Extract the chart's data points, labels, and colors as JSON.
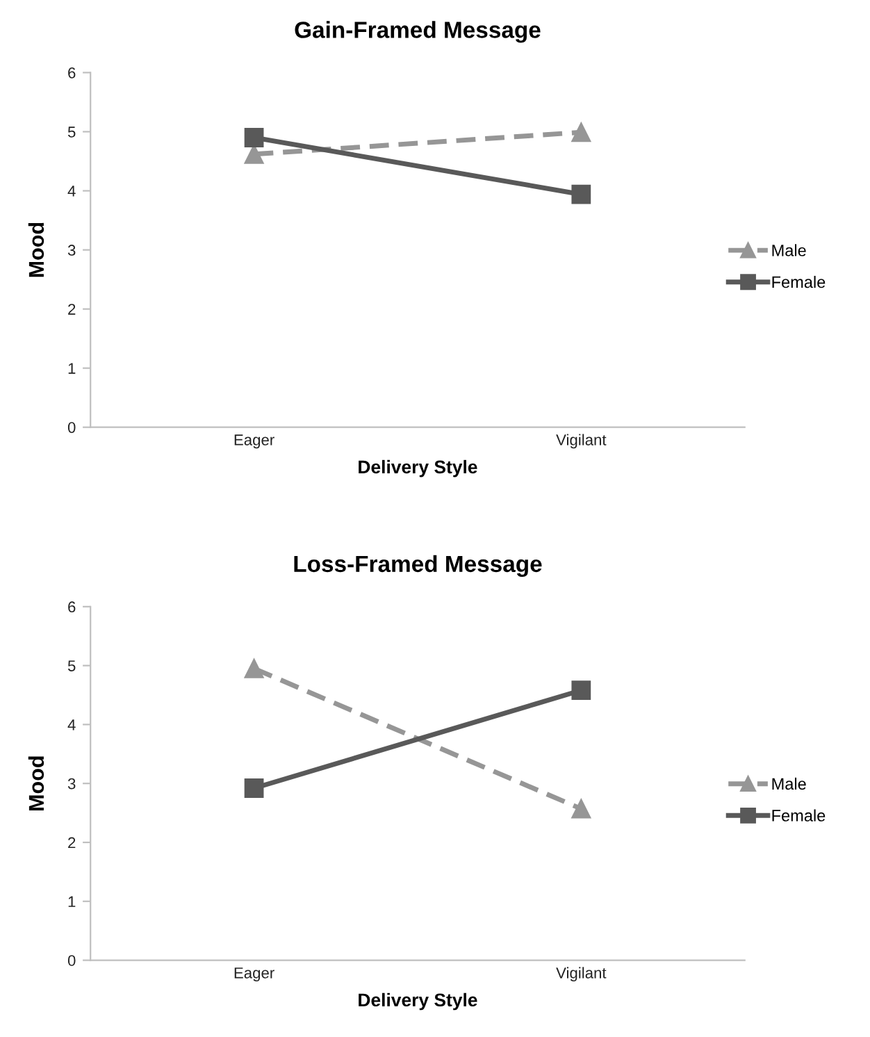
{
  "chart_data": [
    {
      "type": "line",
      "title": "Gain-Framed Message",
      "xlabel": "Delivery Style",
      "ylabel": "Mood",
      "categories": [
        "Eager",
        "Vigilant"
      ],
      "ylim": [
        0,
        6
      ],
      "yticks": [
        0,
        1,
        2,
        3,
        4,
        5,
        6
      ],
      "grid": false,
      "legend": "right",
      "series": [
        {
          "name": "Male",
          "color": "#969696",
          "values": [
            4.62,
            4.99
          ],
          "marker": "triangle",
          "line_style": "dashed"
        },
        {
          "name": "Female",
          "color": "#595959",
          "values": [
            4.9,
            3.94
          ],
          "marker": "square",
          "line_style": "solid"
        }
      ]
    },
    {
      "type": "line",
      "title": "Loss-Framed Message",
      "xlabel": "Delivery Style",
      "ylabel": "Mood",
      "categories": [
        "Eager",
        "Vigilant"
      ],
      "ylim": [
        0,
        6
      ],
      "yticks": [
        0,
        1,
        2,
        3,
        4,
        5,
        6
      ],
      "grid": false,
      "legend": "right",
      "series": [
        {
          "name": "Male",
          "color": "#969696",
          "values": [
            4.95,
            2.57
          ],
          "marker": "triangle",
          "line_style": "dashed"
        },
        {
          "name": "Female",
          "color": "#595959",
          "values": [
            2.92,
            4.58
          ],
          "marker": "square",
          "line_style": "solid"
        }
      ]
    }
  ]
}
